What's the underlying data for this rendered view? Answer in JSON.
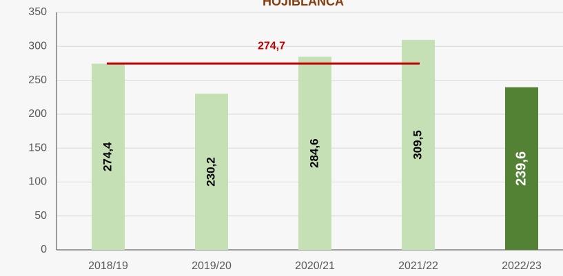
{
  "chart_data": {
    "type": "bar",
    "title": "HOJIBLANCA",
    "categories": [
      "2018/19",
      "2019/20",
      "2020/21",
      "2021/22",
      "2022/23"
    ],
    "values": [
      274.4,
      230.2,
      284.6,
      309.5,
      239.6
    ],
    "value_labels": [
      "274,4",
      "230,2",
      "284,6",
      "309,5",
      "239,6"
    ],
    "colors": [
      "#c5e0b4",
      "#c5e0b4",
      "#c5e0b4",
      "#c5e0b4",
      "#548235"
    ],
    "value_label_colors": [
      "#000000",
      "#000000",
      "#000000",
      "#000000",
      "#ffffff"
    ],
    "average": {
      "value": 274.7,
      "label": "274,7",
      "color": "#c00000"
    },
    "ylim": [
      0,
      350
    ],
    "yticks": [
      0,
      50,
      100,
      150,
      200,
      250,
      300,
      350
    ],
    "grid": true
  }
}
